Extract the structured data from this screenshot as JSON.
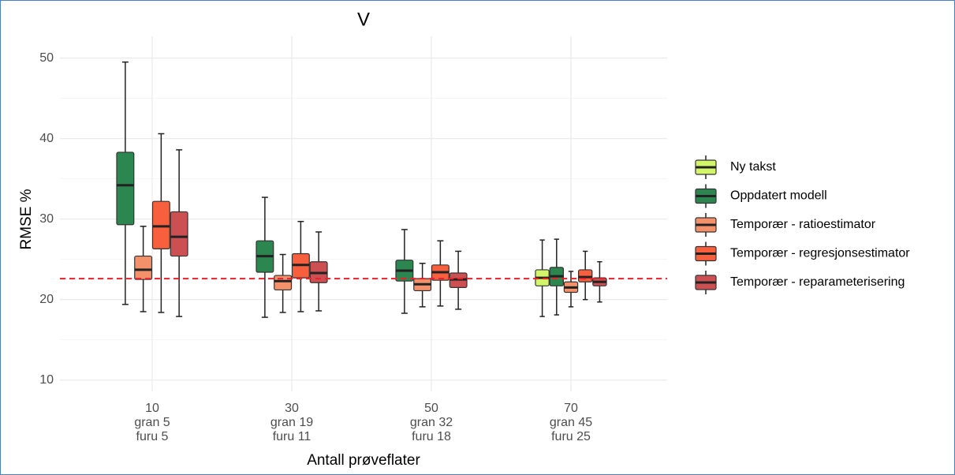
{
  "chart_data": {
    "type": "boxplot",
    "title": "V",
    "x_label": "Antall prøveflater",
    "y_label": "RMSE %",
    "categories": [
      [
        "10",
        "gran 5",
        "furu 5"
      ],
      [
        "30",
        "gran 19",
        "furu 11"
      ],
      [
        "50",
        "gran 32",
        "furu 18"
      ],
      [
        "70",
        "gran 45",
        "furu 25"
      ]
    ],
    "ylim": [
      8.6,
      52.7
    ],
    "yticks": [
      10,
      20,
      30,
      40,
      50
    ],
    "minor_yticks": [
      15,
      25,
      35,
      45
    ],
    "grid": true,
    "legend": "right",
    "hline": {
      "value": 22.6,
      "color": "#e8212a"
    },
    "series": [
      {
        "name": "Ny takst",
        "color": "#d2f56a",
        "values": [
          null,
          null,
          null,
          {
            "low": 17.9,
            "q1": 21.7,
            "median": 22.7,
            "q3": 23.7,
            "high": 27.4
          }
        ]
      },
      {
        "name": "Oppdatert modell",
        "color": "#2b8650",
        "values": [
          {
            "low": 19.4,
            "q1": 29.3,
            "median": 34.2,
            "q3": 38.3,
            "high": 49.5
          },
          {
            "low": 17.8,
            "q1": 23.4,
            "median": 25.4,
            "q3": 27.3,
            "high": 32.7
          },
          {
            "low": 18.3,
            "q1": 22.3,
            "median": 23.6,
            "q3": 24.9,
            "high": 28.7
          },
          {
            "low": 18.1,
            "q1": 21.7,
            "median": 22.9,
            "q3": 24.0,
            "high": 27.5
          }
        ]
      },
      {
        "name": "Temporær - ratioestimator",
        "color": "#f5916a",
        "values": [
          {
            "low": 18.5,
            "q1": 22.5,
            "median": 23.7,
            "q3": 25.4,
            "high": 29.1
          },
          {
            "low": 18.4,
            "q1": 21.2,
            "median": 22.3,
            "q3": 23.0,
            "high": 25.6
          },
          {
            "low": 19.1,
            "q1": 21.1,
            "median": 21.9,
            "q3": 22.6,
            "high": 24.5
          },
          {
            "low": 19.1,
            "q1": 20.9,
            "median": 21.5,
            "q3": 22.2,
            "high": 23.5
          }
        ]
      },
      {
        "name": "Temporær - regresjonsestimator",
        "color": "#f85f3c",
        "values": [
          {
            "low": 18.4,
            "q1": 26.3,
            "median": 29.1,
            "q3": 32.2,
            "high": 40.6
          },
          {
            "low": 18.5,
            "q1": 22.7,
            "median": 24.3,
            "q3": 25.7,
            "high": 29.7
          },
          {
            "low": 19.2,
            "q1": 22.4,
            "median": 23.4,
            "q3": 24.3,
            "high": 27.3
          },
          {
            "low": 20.0,
            "q1": 22.2,
            "median": 22.8,
            "q3": 23.7,
            "high": 26.0
          }
        ]
      },
      {
        "name": "Temporær - reparameterisering",
        "color": "#cc5052",
        "values": [
          {
            "low": 17.9,
            "q1": 25.4,
            "median": 27.8,
            "q3": 30.9,
            "high": 38.6
          },
          {
            "low": 18.6,
            "q1": 22.1,
            "median": 23.3,
            "q3": 24.7,
            "high": 28.4
          },
          {
            "low": 18.8,
            "q1": 21.5,
            "median": 22.5,
            "q3": 23.3,
            "high": 26.0
          },
          {
            "low": 19.7,
            "q1": 21.7,
            "median": 22.2,
            "q3": 22.7,
            "high": 24.7
          }
        ]
      }
    ]
  }
}
